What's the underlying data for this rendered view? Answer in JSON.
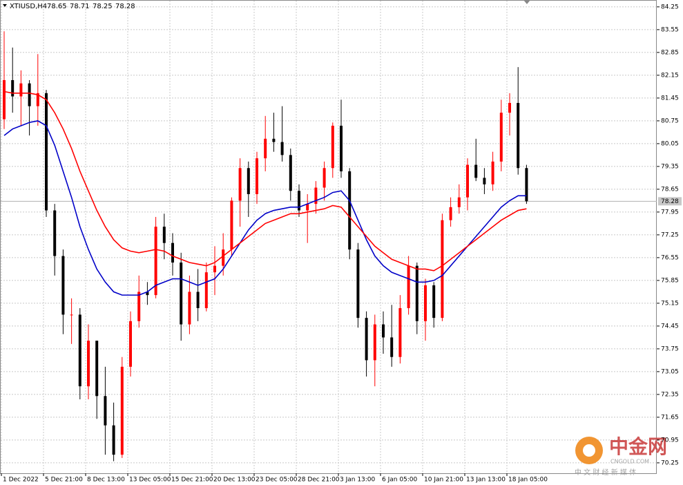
{
  "chart_data": {
    "type": "candlestick",
    "symbol": "XTIUSD,H4",
    "last_bar": [
      78.65,
      78.71,
      78.25,
      78.28
    ],
    "current_price": 78.28,
    "bull_color": "#ff0000",
    "bear_color": "#000000",
    "grid": true,
    "categories": [
      "1 Dec 2022",
      null,
      null,
      null,
      null,
      "5 Dec 21:00",
      null,
      null,
      null,
      null,
      "8 Dec 13:00",
      null,
      null,
      null,
      null,
      "13 Dec 05:00",
      null,
      null,
      null,
      null,
      "15 Dec 21:00",
      null,
      null,
      null,
      null,
      "20 Dec 13:00",
      null,
      null,
      null,
      null,
      "23 Dec 05:00",
      null,
      null,
      null,
      null,
      "28 Dec 21:00",
      null,
      null,
      null,
      null,
      "3 Jan 13:00",
      null,
      null,
      null,
      null,
      "6 Jan 05:00",
      null,
      null,
      null,
      null,
      "10 Jan 21:00",
      null,
      null,
      null,
      null,
      "13 Jan 13:00",
      null,
      null,
      null,
      null,
      "18 Jan 05:00",
      null,
      null
    ],
    "open": [
      80.8,
      82.0,
      81.5,
      81.9,
      81.2,
      81.6,
      78.0,
      76.6,
      74.8,
      74.8,
      72.6,
      74.0,
      72.3,
      71.4,
      70.5,
      73.2,
      74.6,
      75.5,
      75.4,
      77.5,
      77.0,
      76.4,
      74.5,
      75.5,
      75.0,
      76.1,
      76.3,
      76.8,
      78.3,
      79.3,
      78.5,
      79.6,
      80.2,
      80.1,
      79.7,
      78.6,
      78.0,
      78.2,
      78.7,
      79.3,
      80.6,
      79.2,
      76.8,
      74.7,
      73.4,
      74.5,
      74.1,
      73.5,
      75.0,
      76.3,
      74.6,
      75.7,
      74.7,
      77.7,
      78.1,
      78.4,
      79.4,
      79.0,
      78.8,
      79.5,
      81.0,
      81.3,
      79.3
    ],
    "high": [
      83.5,
      83.0,
      82.3,
      82.0,
      82.8,
      81.7,
      78.2,
      76.8,
      75.3,
      75.0,
      74.5,
      74.0,
      73.2,
      72.1,
      73.5,
      74.9,
      76.0,
      75.8,
      77.8,
      77.9,
      77.3,
      76.7,
      76.0,
      76.2,
      76.4,
      76.9,
      77.3,
      78.4,
      79.6,
      79.5,
      79.8,
      80.9,
      81.0,
      81.2,
      79.9,
      78.8,
      78.5,
      78.9,
      79.5,
      80.7,
      81.4,
      79.3,
      77.0,
      74.9,
      74.8,
      74.9,
      75.1,
      75.4,
      76.6,
      76.4,
      75.9,
      75.8,
      77.9,
      78.4,
      78.8,
      79.6,
      80.2,
      79.3,
      79.8,
      81.4,
      81.6,
      82.4,
      79.4
    ],
    "low": [
      80.5,
      81.0,
      80.6,
      80.3,
      80.6,
      77.8,
      76.0,
      74.2,
      73.9,
      72.2,
      72.2,
      71.6,
      70.5,
      70.3,
      70.4,
      72.9,
      74.4,
      75.1,
      75.3,
      76.5,
      76.0,
      74.0,
      74.2,
      74.6,
      74.9,
      75.4,
      76.0,
      76.6,
      77.5,
      77.8,
      78.2,
      79.2,
      79.8,
      79.5,
      78.3,
      77.8,
      77.0,
      77.9,
      78.3,
      79.0,
      79.0,
      76.5,
      74.4,
      72.9,
      72.6,
      73.6,
      73.2,
      73.3,
      74.8,
      74.2,
      74.0,
      74.4,
      74.6,
      77.5,
      77.9,
      78.0,
      78.9,
      78.5,
      78.6,
      79.2,
      80.3,
      79.1,
      78.2
    ],
    "close": [
      82.0,
      81.5,
      81.9,
      81.2,
      81.6,
      78.0,
      76.6,
      74.8,
      74.8,
      72.6,
      74.0,
      72.3,
      71.4,
      70.5,
      73.2,
      74.6,
      75.5,
      75.4,
      77.5,
      77.0,
      76.4,
      74.5,
      75.5,
      75.0,
      76.1,
      76.3,
      76.8,
      78.3,
      79.3,
      78.5,
      79.6,
      80.2,
      80.1,
      79.7,
      78.6,
      78.0,
      78.2,
      78.7,
      79.3,
      80.6,
      79.2,
      76.8,
      74.7,
      73.4,
      74.5,
      74.1,
      73.5,
      75.0,
      76.3,
      74.6,
      75.7,
      74.7,
      77.7,
      78.1,
      78.4,
      79.4,
      79.0,
      78.8,
      79.5,
      81.0,
      81.3,
      79.3,
      78.28
    ],
    "series": [
      {
        "color": "#0000c8",
        "values": [
          80.3,
          80.5,
          80.6,
          80.7,
          80.75,
          80.6,
          80.0,
          79.2,
          78.4,
          77.5,
          76.8,
          76.2,
          75.8,
          75.5,
          75.4,
          75.4,
          75.4,
          75.5,
          75.7,
          75.8,
          75.9,
          75.9,
          75.8,
          75.7,
          75.8,
          75.9,
          76.2,
          76.6,
          77.0,
          77.4,
          77.7,
          77.9,
          78.0,
          78.05,
          78.1,
          78.1,
          78.2,
          78.3,
          78.4,
          78.55,
          78.6,
          78.3,
          77.7,
          77.1,
          76.6,
          76.3,
          76.1,
          76.0,
          75.9,
          75.8,
          75.8,
          75.85,
          76.0,
          76.3,
          76.6,
          76.9,
          77.2,
          77.5,
          77.8,
          78.1,
          78.3,
          78.45,
          78.45
        ]
      },
      {
        "color": "#ff0000",
        "values": [
          81.65,
          81.6,
          81.6,
          81.6,
          81.55,
          81.4,
          81.0,
          80.5,
          79.9,
          79.2,
          78.6,
          78.0,
          77.5,
          77.1,
          76.85,
          76.75,
          76.7,
          76.75,
          76.8,
          76.75,
          76.6,
          76.5,
          76.4,
          76.35,
          76.3,
          76.4,
          76.6,
          76.8,
          77.0,
          77.2,
          77.4,
          77.6,
          77.7,
          77.8,
          77.9,
          77.9,
          77.95,
          78.0,
          78.05,
          78.15,
          78.1,
          77.8,
          77.5,
          77.2,
          76.9,
          76.7,
          76.5,
          76.4,
          76.3,
          76.2,
          76.2,
          76.15,
          76.3,
          76.5,
          76.7,
          76.9,
          77.1,
          77.3,
          77.5,
          77.7,
          77.85,
          78.0,
          78.05
        ]
      }
    ],
    "ylim": [
      69.93,
      84.46
    ],
    "yticks": [
      84.25,
      83.55,
      82.85,
      82.15,
      81.45,
      80.75,
      80.05,
      79.35,
      78.65,
      77.95,
      77.25,
      76.55,
      75.85,
      75.15,
      74.45,
      73.75,
      73.05,
      72.35,
      71.65,
      70.95,
      70.25
    ],
    "watermark": {
      "logo": "中金网",
      "site": "CNGOLD.COM",
      "tagline": "中 文 财 经 新 媒 体"
    }
  }
}
